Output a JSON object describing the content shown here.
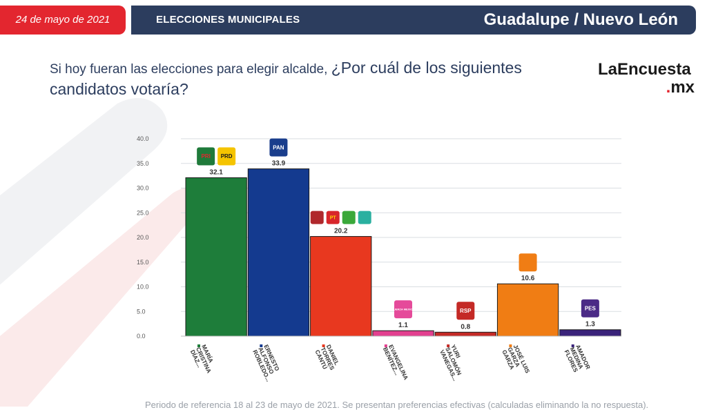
{
  "header": {
    "date": "24 de mayo de 2021",
    "section": "ELECCIONES MUNICIPALES",
    "place": "Guadalupe / Nuevo León"
  },
  "question": {
    "part1": "Si hoy fueran las elecciones para elegir alcalde, ",
    "part2": "¿Por cuál de los siguientes candidatos votaría?"
  },
  "logo": {
    "line1": "LaEncuesta",
    "line2_dot": ".",
    "line2": "mx"
  },
  "footnote": "Periodo de referencia 18 al 23 de mayo de 2021. Se presentan preferencias efectivas (calculadas eliminando la no respuesta).",
  "chart_data": {
    "type": "bar",
    "title": "",
    "xlabel": "",
    "ylabel": "",
    "ylim": [
      0,
      40
    ],
    "yticks": [
      "0.0",
      "5.0",
      "10.0",
      "15.0",
      "20.0",
      "25.0",
      "30.0",
      "35.0",
      "40.0"
    ],
    "grid": true,
    "categories": [
      [
        "MARÍA",
        "CRISTINA",
        "DÍAZ..."
      ],
      [
        "ERNESTO",
        "ALFONSO",
        "ROBLEDO..."
      ],
      [
        "DANIEL",
        "TORRES",
        "CANTÚ"
      ],
      [
        "EVANGELINA",
        "BENÍTEZ..."
      ],
      [
        "YURI",
        "SALOMÓN",
        "VANEGAS..."
      ],
      [
        "JOSÉ LUIS",
        "GARZA",
        "GARZA"
      ],
      [
        "AMADOR",
        "MEDINA",
        "FLORES"
      ]
    ],
    "values": [
      32.1,
      33.9,
      20.2,
      1.1,
      0.8,
      10.6,
      1.3
    ],
    "value_labels": [
      "32.1",
      "33.9",
      "20.2",
      "1.1",
      "0.8",
      "10.6",
      "1.3"
    ],
    "colors": [
      "#1e7d3a",
      "#143a8f",
      "#e8381f",
      "#e2408f",
      "#c42a26",
      "#f07d14",
      "#3a237a"
    ],
    "party_logos": [
      [
        {
          "text": "PRI",
          "color": "#1f7a3a",
          "text_color": "#e3262f",
          "icon": "pri-logo-icon"
        },
        {
          "text": "PRD",
          "color": "#f5c400",
          "text_color": "#1a1a1a",
          "icon": "prd-logo-icon"
        }
      ],
      [
        {
          "text": "PAN",
          "color": "#1a3e8c",
          "text_color": "#ffffff",
          "icon": "pan-logo-icon"
        }
      ],
      [
        {
          "text": "",
          "color": "#b0282c",
          "text_color": "#ffffff",
          "icon": "morena-logo-icon"
        },
        {
          "text": "PT",
          "color": "#d8262b",
          "text_color": "#ffd400",
          "icon": "pt-logo-icon"
        },
        {
          "text": "",
          "color": "#3aa83a",
          "text_color": "#ffffff",
          "icon": "verde-logo-icon"
        },
        {
          "text": "",
          "color": "#2ab0a0",
          "text_color": "#ffffff",
          "icon": "nueva-alianza-logo-icon"
        }
      ],
      [
        {
          "text": "FUERZA MEXICO",
          "color": "#e54a9a",
          "text_color": "#ffffff",
          "icon": "fuerza-mexico-logo-icon"
        }
      ],
      [
        {
          "text": "RSP",
          "color": "#c42a26",
          "text_color": "#ffffff",
          "icon": "rsp-logo-icon"
        }
      ],
      [
        {
          "text": "",
          "color": "#f07d14",
          "text_color": "#ffffff",
          "icon": "movimiento-ciudadano-logo-icon"
        }
      ],
      [
        {
          "text": "PES",
          "color": "#4b2a86",
          "text_color": "#ffffff",
          "icon": "pes-logo-icon"
        }
      ]
    ]
  }
}
